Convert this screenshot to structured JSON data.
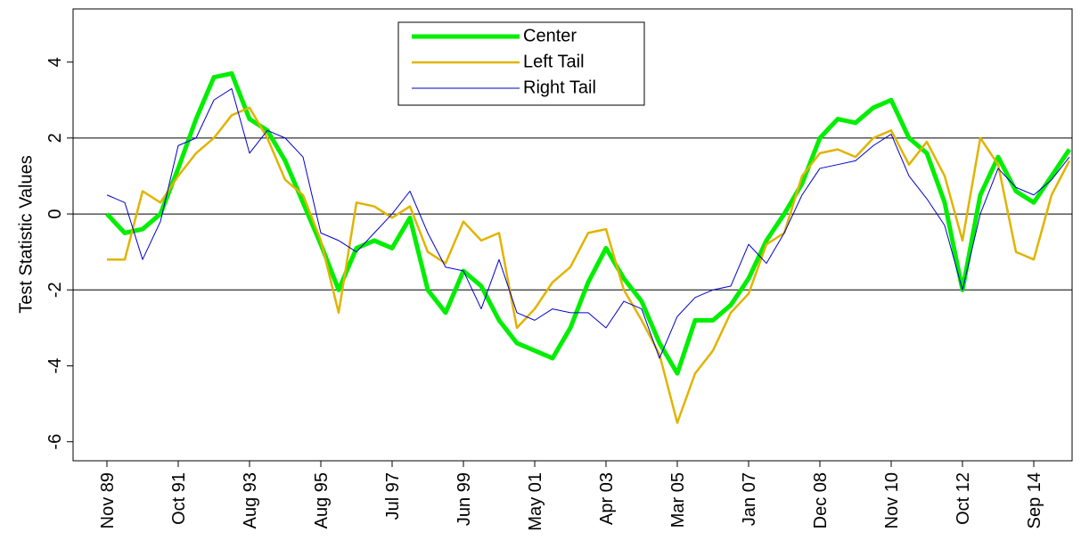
{
  "chart_data": {
    "type": "line",
    "y_label": "Test Statistic Values",
    "categories": [
      "Nov 89",
      null,
      null,
      null,
      "Oct 91",
      null,
      null,
      null,
      "Aug 93",
      null,
      null,
      null,
      "Aug 95",
      null,
      null,
      null,
      "Jul 97",
      null,
      null,
      null,
      "Jun 99",
      null,
      null,
      null,
      "May 01",
      null,
      null,
      null,
      "Apr 03",
      null,
      null,
      null,
      "Mar 05",
      null,
      null,
      null,
      "Jan 07",
      null,
      null,
      null,
      "Dec 08",
      null,
      null,
      null,
      "Nov 10",
      null,
      null,
      null,
      "Oct 12",
      null,
      null,
      null,
      "Sep 14",
      null,
      null
    ],
    "ylim": [
      -6.5,
      5.4
    ],
    "yticks": [
      -6,
      -4,
      -2,
      0,
      2,
      4
    ],
    "reference_lines": [
      -2,
      0,
      2
    ],
    "series": [
      {
        "name": "Center",
        "color": "#00ee00",
        "width": 5,
        "values": [
          0.0,
          -0.5,
          -0.4,
          0.0,
          1.2,
          2.5,
          3.6,
          3.7,
          2.5,
          2.2,
          1.4,
          0.3,
          -0.8,
          -2.0,
          -0.9,
          -0.7,
          -0.9,
          -0.1,
          -2.0,
          -2.6,
          -1.5,
          -1.9,
          -2.8,
          -3.4,
          -3.6,
          -3.8,
          -3.0,
          -1.8,
          -0.9,
          -1.7,
          -2.3,
          -3.4,
          -4.2,
          -2.8,
          -2.8,
          -2.4,
          -1.7,
          -0.7,
          0.0,
          0.8,
          2.0,
          2.5,
          2.4,
          2.8,
          3.0,
          2.0,
          1.6,
          0.3,
          -2.0,
          0.5,
          1.5,
          0.6,
          0.3,
          1.0,
          1.7
        ]
      },
      {
        "name": "Left Tail",
        "color": "#e0b400",
        "width": 2.5,
        "values": [
          -1.2,
          -1.2,
          0.6,
          0.3,
          1.0,
          1.6,
          2.0,
          2.6,
          2.8,
          2.0,
          0.9,
          0.5,
          -0.7,
          -2.6,
          0.3,
          0.2,
          -0.1,
          0.2,
          -1.0,
          -1.3,
          -0.2,
          -0.7,
          -0.5,
          -3.0,
          -2.5,
          -1.8,
          -1.4,
          -0.5,
          -0.4,
          -2.0,
          -2.8,
          -3.7,
          -5.5,
          -4.2,
          -3.6,
          -2.6,
          -2.1,
          -0.8,
          -0.5,
          1.0,
          1.6,
          1.7,
          1.5,
          2.0,
          2.2,
          1.3,
          1.9,
          1.0,
          -0.7,
          2.0,
          1.3,
          -1.0,
          -1.2,
          0.5,
          1.4
        ]
      },
      {
        "name": "Right Tail",
        "color": "#0000cc",
        "width": 1,
        "values": [
          0.5,
          0.3,
          -1.2,
          -0.2,
          1.8,
          2.0,
          3.0,
          3.3,
          1.6,
          2.2,
          2.0,
          1.5,
          -0.5,
          -0.7,
          -1.0,
          -0.5,
          0.0,
          0.6,
          -0.5,
          -1.4,
          -1.5,
          -2.5,
          -1.2,
          -2.6,
          -2.8,
          -2.5,
          -2.6,
          -2.6,
          -3.0,
          -2.3,
          -2.5,
          -3.8,
          -2.7,
          -2.2,
          -2.0,
          -1.9,
          -0.8,
          -1.3,
          -0.5,
          0.5,
          1.2,
          1.3,
          1.4,
          1.8,
          2.1,
          1.0,
          0.4,
          -0.3,
          -2.0,
          0.0,
          1.2,
          0.7,
          0.5,
          0.9,
          1.5
        ]
      }
    ]
  }
}
